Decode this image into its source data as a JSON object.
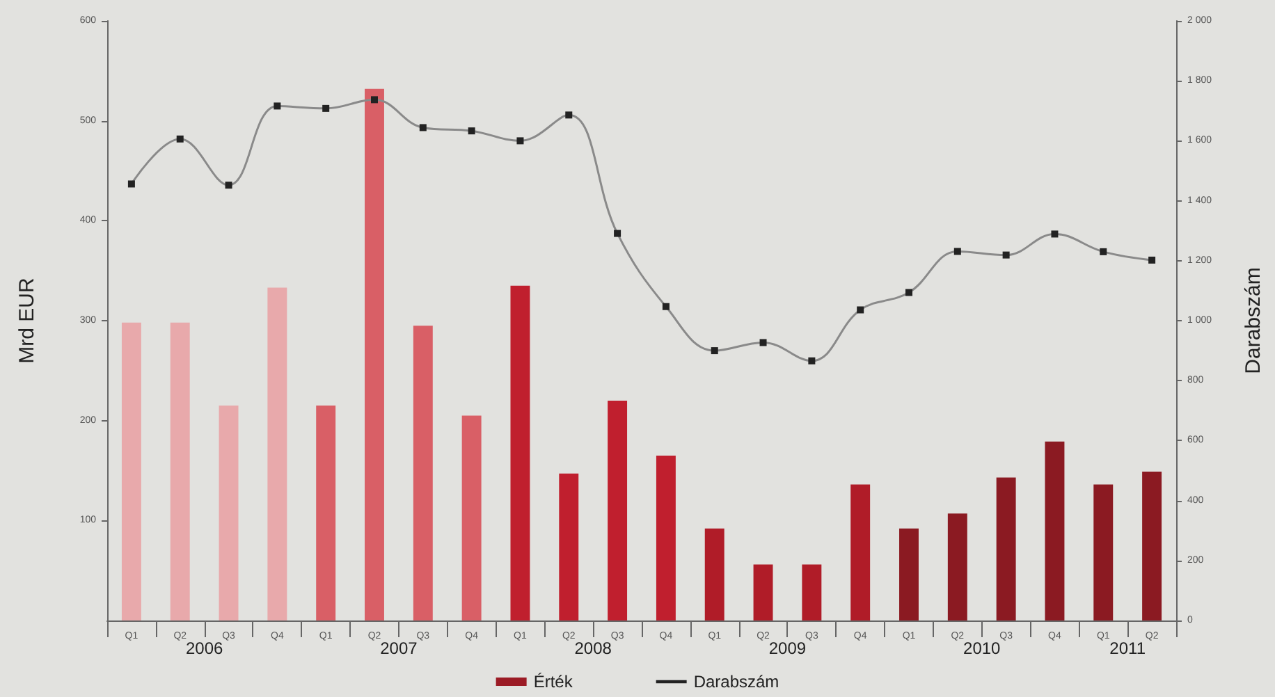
{
  "chart_data": {
    "type": "bar",
    "categories": [
      "Q1",
      "Q2",
      "Q3",
      "Q4",
      "Q1",
      "Q2",
      "Q3",
      "Q4",
      "Q1",
      "Q2",
      "Q3",
      "Q4",
      "Q1",
      "Q2",
      "Q3",
      "Q4",
      "Q1",
      "Q2",
      "Q3",
      "Q4",
      "Q1",
      "Q2"
    ],
    "annotations": [
      "2006",
      "2007",
      "2008",
      "2009",
      "2010",
      "2011"
    ],
    "ylabel": "Mrd EUR",
    "y2label": "Darabszám",
    "ylim": [
      0,
      600
    ],
    "yticks": [
      100,
      200,
      300,
      400,
      500,
      600
    ],
    "y2lim": [
      0,
      2000
    ],
    "y2ticks": [
      0,
      200,
      400,
      600,
      800,
      {
        "value": 1000,
        "label": "1 000"
      },
      {
        "value": 1200,
        "label": "1 200"
      },
      {
        "value": 1400,
        "label": "1 400"
      },
      {
        "value": 1600,
        "label": "1 600"
      },
      {
        "value": 1800,
        "label": "1 800"
      },
      {
        "value": 2000,
        "label": "2 000"
      }
    ],
    "grid": false,
    "legend": "bottom",
    "series": [
      {
        "name": "Érték",
        "color": "#9b1b25",
        "colors": [
          "#e8a9ab",
          "#e8a9ab",
          "#e8a9ab",
          "#e8a9ab",
          "#d95f66",
          "#d95f66",
          "#d95f66",
          "#d95f66",
          "#c01f2e",
          "#c01f2e",
          "#c01f2e",
          "#c01f2e",
          "#b01c28",
          "#b01c28",
          "#b01c28",
          "#b01c28",
          "#8b1a22",
          "#8b1a22",
          "#8b1a22",
          "#8b1a22",
          "#8b1a22",
          "#8b1a22"
        ],
        "values": [
          298,
          298,
          215,
          333,
          215,
          532,
          295,
          205,
          335,
          147,
          220,
          165,
          92,
          56,
          56,
          136,
          92,
          107,
          143,
          179,
          136,
          149
        ]
      },
      {
        "name": "Darabszám",
        "type": "line",
        "axis": "y2",
        "color": "#8a8a8a",
        "marker": "square",
        "values": [
          1456,
          1606,
          1452,
          1716,
          1708,
          1737,
          1644,
          1633,
          1600,
          1686,
          1291,
          1047,
          900,
          927,
          866,
          1036,
          1094,
          1231,
          1219,
          1289,
          1230,
          1202
        ]
      }
    ]
  }
}
